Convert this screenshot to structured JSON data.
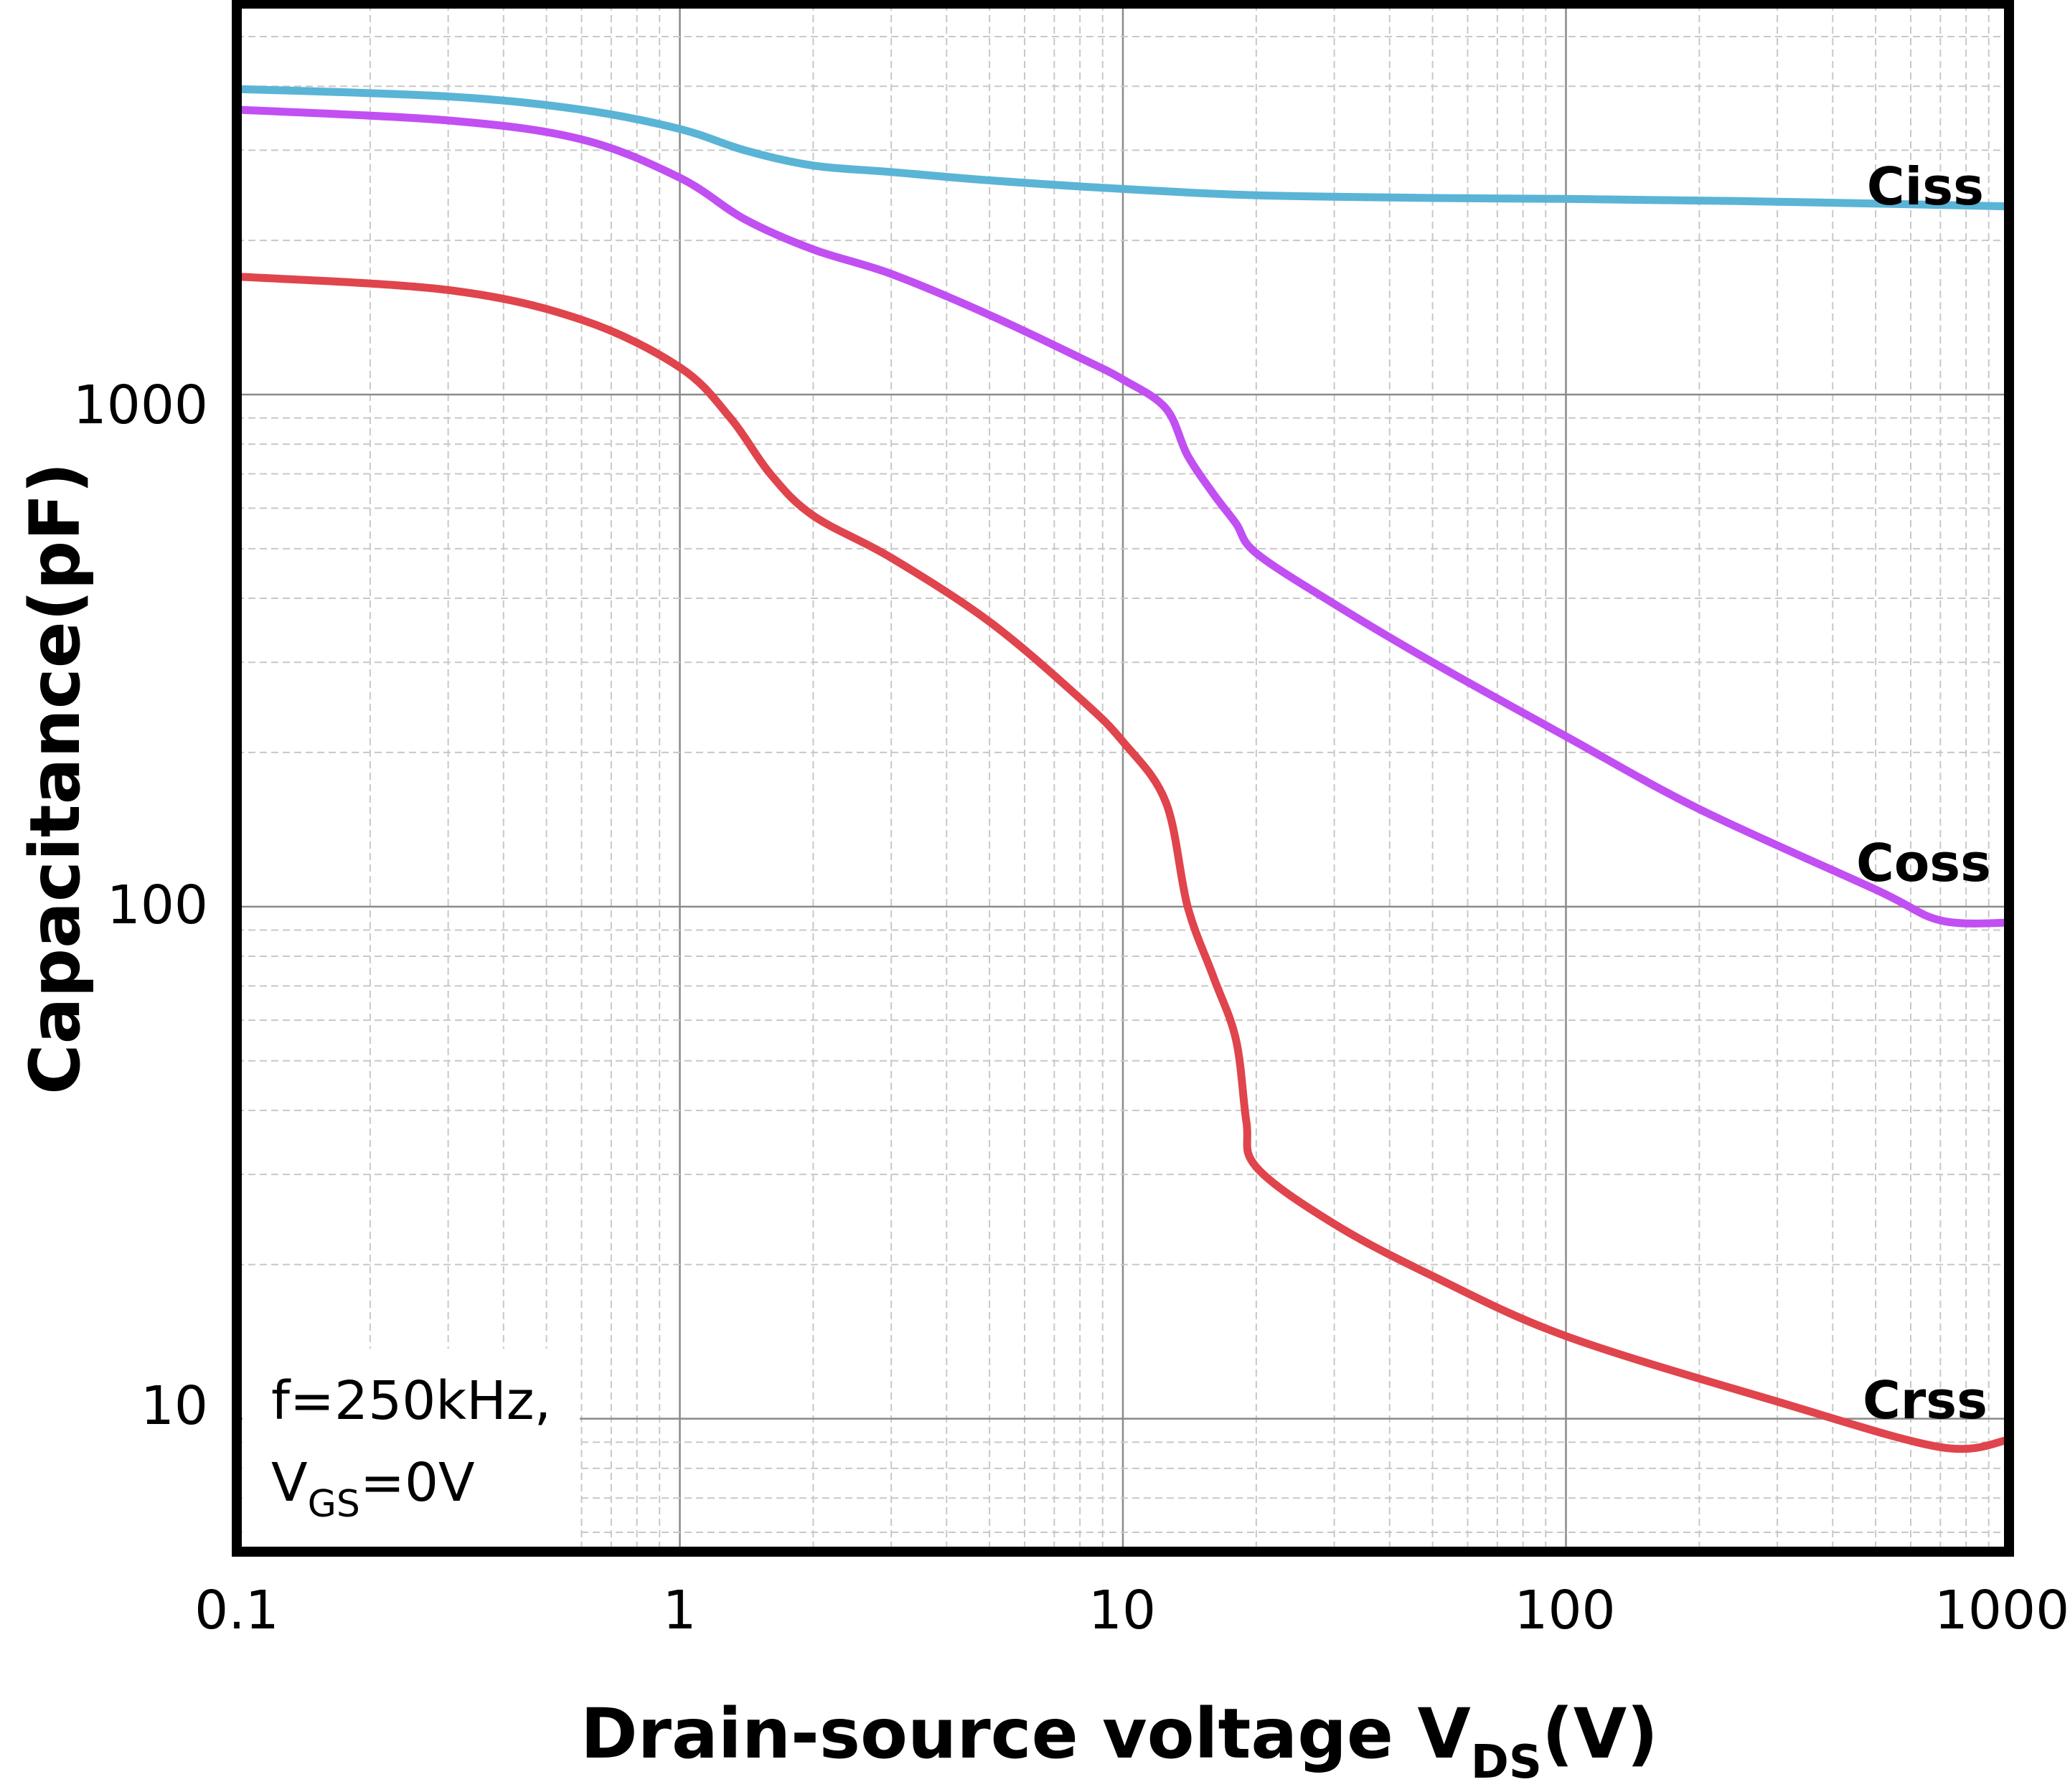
{
  "chart_data": {
    "type": "line",
    "title": "",
    "xlabel": "Drain-source voltage V",
    "xlabel_sub": "DS",
    "xlabel_suffix": "(V)",
    "ylabel": "Capacitance(pF)",
    "xscale": "log",
    "yscale": "log",
    "xlim": [
      0.1,
      1000
    ],
    "ylim": [
      5.5,
      5800
    ],
    "grid": true,
    "x_ticks": [
      0.1,
      1,
      10,
      100,
      1000
    ],
    "x_tick_labels": [
      "0.1",
      "1",
      "10",
      "100",
      "1000"
    ],
    "y_ticks": [
      10,
      100,
      1000
    ],
    "y_tick_labels": [
      "10",
      "100",
      "1000"
    ],
    "annotation": {
      "line1": "f=250kHz,",
      "line2_main": "V",
      "line2_sub": "GS",
      "line2_suffix": "=0V"
    },
    "series": [
      {
        "name": "Ciss",
        "color": "#5ab4d6",
        "x": [
          0.1,
          0.3,
          0.6,
          1.0,
          1.4,
          2.0,
          3.0,
          5.0,
          10,
          20,
          50,
          100,
          300,
          1000
        ],
        "values": [
          3950,
          3820,
          3600,
          3300,
          3000,
          2800,
          2720,
          2620,
          2520,
          2450,
          2420,
          2410,
          2380,
          2330
        ]
      },
      {
        "name": "Coss",
        "color": "#c14ff2",
        "x": [
          0.1,
          0.3,
          0.6,
          1.0,
          1.4,
          2.0,
          3.0,
          5.0,
          8.0,
          10,
          12.5,
          14,
          16,
          18,
          20,
          30,
          50,
          100,
          200,
          500,
          700,
          1000
        ],
        "values": [
          3600,
          3430,
          3150,
          2650,
          2200,
          1920,
          1720,
          1430,
          1180,
          1070,
          940,
          760,
          640,
          560,
          490,
          390,
          300,
          215,
          155,
          108,
          94,
          93
        ]
      },
      {
        "name": "Crss",
        "color": "#e0444c",
        "x": [
          0.1,
          0.3,
          0.6,
          1.0,
          1.3,
          1.6,
          2.0,
          3.0,
          5.0,
          8.0,
          10,
          12.5,
          14,
          16,
          18,
          19,
          20,
          30,
          50,
          100,
          300,
          700,
          1000
        ],
        "values": [
          1700,
          1600,
          1400,
          1130,
          900,
          700,
          580,
          480,
          360,
          255,
          210,
          160,
          100,
          73,
          55,
          38,
          31,
          24,
          19,
          14.5,
          10.8,
          8.8,
          9.1
        ]
      }
    ]
  }
}
